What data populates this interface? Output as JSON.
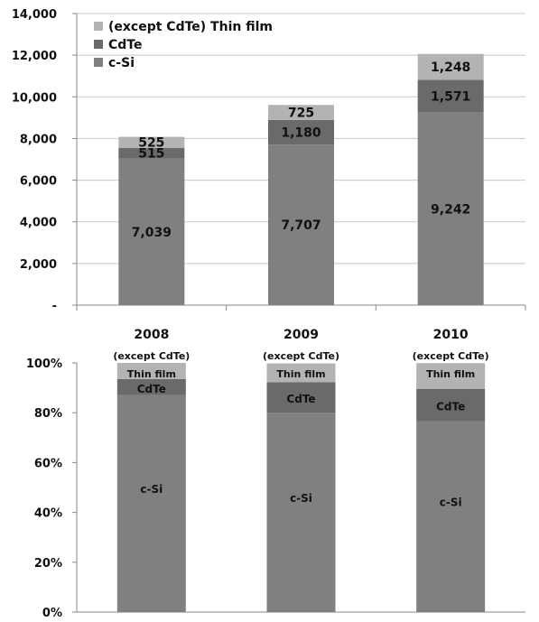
{
  "colors": {
    "c_si": "#808080",
    "cdte": "#6a6a6a",
    "thin_film": "#b3b3b3",
    "grid": "#c8c8c8",
    "axis": "#8a8a8a"
  },
  "chart_data": [
    {
      "type": "bar",
      "stacked": true,
      "categories": [
        "2008",
        "2009",
        "2010"
      ],
      "series": [
        {
          "name": "c-Si",
          "values": [
            7039,
            7707,
            9242
          ]
        },
        {
          "name": "CdTe",
          "values": [
            515,
            1180,
            1571
          ]
        },
        {
          "name": "(except CdTe) Thin film",
          "values": [
            525,
            725,
            1248
          ]
        }
      ],
      "data_labels": [
        [
          "7,039",
          "515",
          "525"
        ],
        [
          "7,707",
          "1,180",
          "725"
        ],
        [
          "9,242",
          "1,571",
          "1,248"
        ]
      ],
      "ylim": [
        0,
        14000
      ],
      "yticks": [
        "-",
        "2,000",
        "4,000",
        "6,000",
        "8,000",
        "10,000",
        "12,000",
        "14,000"
      ],
      "grid": true,
      "legend": "top-left",
      "title": "",
      "xlabel": "",
      "ylabel": ""
    },
    {
      "type": "bar",
      "stacked": true,
      "percent": true,
      "categories": [
        "2008",
        "2009",
        "2010"
      ],
      "series": [
        {
          "name": "c-Si",
          "values": [
            87.1,
            80.0,
            76.6
          ]
        },
        {
          "name": "CdTe",
          "values": [
            6.4,
            12.3,
            13.0
          ]
        },
        {
          "name": "(except CdTe) Thin film",
          "values": [
            6.5,
            7.5,
            10.3
          ]
        }
      ],
      "segment_labels": {
        "c_si": "c-Si",
        "cdte": "CdTe",
        "thin_line1": "(except CdTe)",
        "thin_line2": "Thin film"
      },
      "ylim": [
        0,
        100
      ],
      "yticks": [
        "0%",
        "20%",
        "40%",
        "60%",
        "80%",
        "100%"
      ],
      "grid": false,
      "title": "",
      "xlabel": "",
      "ylabel": ""
    }
  ]
}
